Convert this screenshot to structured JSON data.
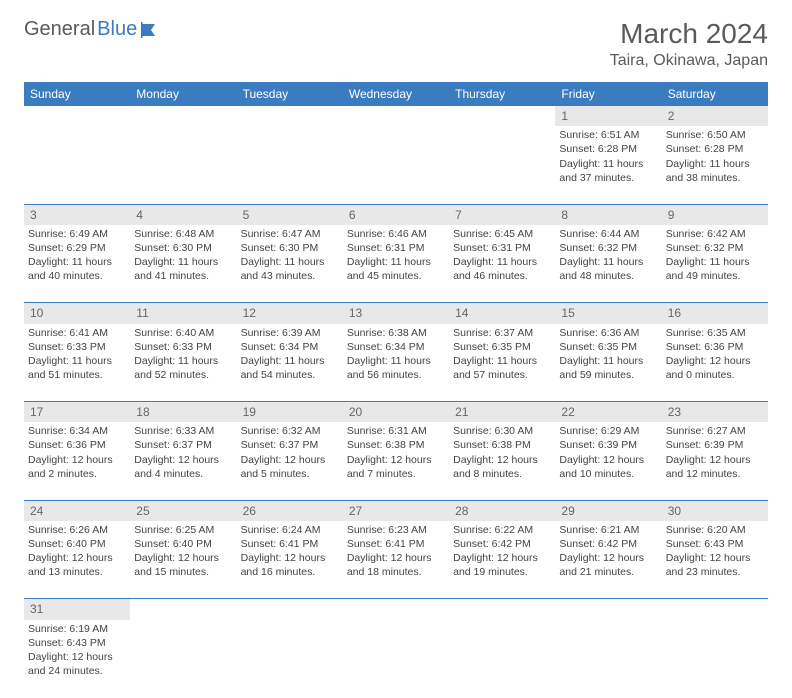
{
  "logo": {
    "text1": "General",
    "text2": "Blue"
  },
  "title": "March 2024",
  "location": "Taira, Okinawa, Japan",
  "colors": {
    "header_bg": "#3b7bbf",
    "header_fg": "#ffffff",
    "daynum_bg": "#e8e8e8",
    "row_border": "#3b7bbf",
    "text": "#444444",
    "title": "#5a5a5a"
  },
  "weekdays": [
    "Sunday",
    "Monday",
    "Tuesday",
    "Wednesday",
    "Thursday",
    "Friday",
    "Saturday"
  ],
  "weeks": [
    [
      null,
      null,
      null,
      null,
      null,
      {
        "d": "1",
        "sunrise": "6:51 AM",
        "sunset": "6:28 PM",
        "daylight": "11 hours and 37 minutes."
      },
      {
        "d": "2",
        "sunrise": "6:50 AM",
        "sunset": "6:28 PM",
        "daylight": "11 hours and 38 minutes."
      }
    ],
    [
      {
        "d": "3",
        "sunrise": "6:49 AM",
        "sunset": "6:29 PM",
        "daylight": "11 hours and 40 minutes."
      },
      {
        "d": "4",
        "sunrise": "6:48 AM",
        "sunset": "6:30 PM",
        "daylight": "11 hours and 41 minutes."
      },
      {
        "d": "5",
        "sunrise": "6:47 AM",
        "sunset": "6:30 PM",
        "daylight": "11 hours and 43 minutes."
      },
      {
        "d": "6",
        "sunrise": "6:46 AM",
        "sunset": "6:31 PM",
        "daylight": "11 hours and 45 minutes."
      },
      {
        "d": "7",
        "sunrise": "6:45 AM",
        "sunset": "6:31 PM",
        "daylight": "11 hours and 46 minutes."
      },
      {
        "d": "8",
        "sunrise": "6:44 AM",
        "sunset": "6:32 PM",
        "daylight": "11 hours and 48 minutes."
      },
      {
        "d": "9",
        "sunrise": "6:42 AM",
        "sunset": "6:32 PM",
        "daylight": "11 hours and 49 minutes."
      }
    ],
    [
      {
        "d": "10",
        "sunrise": "6:41 AM",
        "sunset": "6:33 PM",
        "daylight": "11 hours and 51 minutes."
      },
      {
        "d": "11",
        "sunrise": "6:40 AM",
        "sunset": "6:33 PM",
        "daylight": "11 hours and 52 minutes."
      },
      {
        "d": "12",
        "sunrise": "6:39 AM",
        "sunset": "6:34 PM",
        "daylight": "11 hours and 54 minutes."
      },
      {
        "d": "13",
        "sunrise": "6:38 AM",
        "sunset": "6:34 PM",
        "daylight": "11 hours and 56 minutes."
      },
      {
        "d": "14",
        "sunrise": "6:37 AM",
        "sunset": "6:35 PM",
        "daylight": "11 hours and 57 minutes."
      },
      {
        "d": "15",
        "sunrise": "6:36 AM",
        "sunset": "6:35 PM",
        "daylight": "11 hours and 59 minutes."
      },
      {
        "d": "16",
        "sunrise": "6:35 AM",
        "sunset": "6:36 PM",
        "daylight": "12 hours and 0 minutes."
      }
    ],
    [
      {
        "d": "17",
        "sunrise": "6:34 AM",
        "sunset": "6:36 PM",
        "daylight": "12 hours and 2 minutes."
      },
      {
        "d": "18",
        "sunrise": "6:33 AM",
        "sunset": "6:37 PM",
        "daylight": "12 hours and 4 minutes."
      },
      {
        "d": "19",
        "sunrise": "6:32 AM",
        "sunset": "6:37 PM",
        "daylight": "12 hours and 5 minutes."
      },
      {
        "d": "20",
        "sunrise": "6:31 AM",
        "sunset": "6:38 PM",
        "daylight": "12 hours and 7 minutes."
      },
      {
        "d": "21",
        "sunrise": "6:30 AM",
        "sunset": "6:38 PM",
        "daylight": "12 hours and 8 minutes."
      },
      {
        "d": "22",
        "sunrise": "6:29 AM",
        "sunset": "6:39 PM",
        "daylight": "12 hours and 10 minutes."
      },
      {
        "d": "23",
        "sunrise": "6:27 AM",
        "sunset": "6:39 PM",
        "daylight": "12 hours and 12 minutes."
      }
    ],
    [
      {
        "d": "24",
        "sunrise": "6:26 AM",
        "sunset": "6:40 PM",
        "daylight": "12 hours and 13 minutes."
      },
      {
        "d": "25",
        "sunrise": "6:25 AM",
        "sunset": "6:40 PM",
        "daylight": "12 hours and 15 minutes."
      },
      {
        "d": "26",
        "sunrise": "6:24 AM",
        "sunset": "6:41 PM",
        "daylight": "12 hours and 16 minutes."
      },
      {
        "d": "27",
        "sunrise": "6:23 AM",
        "sunset": "6:41 PM",
        "daylight": "12 hours and 18 minutes."
      },
      {
        "d": "28",
        "sunrise": "6:22 AM",
        "sunset": "6:42 PM",
        "daylight": "12 hours and 19 minutes."
      },
      {
        "d": "29",
        "sunrise": "6:21 AM",
        "sunset": "6:42 PM",
        "daylight": "12 hours and 21 minutes."
      },
      {
        "d": "30",
        "sunrise": "6:20 AM",
        "sunset": "6:43 PM",
        "daylight": "12 hours and 23 minutes."
      }
    ],
    [
      {
        "d": "31",
        "sunrise": "6:19 AM",
        "sunset": "6:43 PM",
        "daylight": "12 hours and 24 minutes."
      },
      null,
      null,
      null,
      null,
      null,
      null
    ]
  ],
  "labels": {
    "sunrise": "Sunrise:",
    "sunset": "Sunset:",
    "daylight": "Daylight:"
  }
}
